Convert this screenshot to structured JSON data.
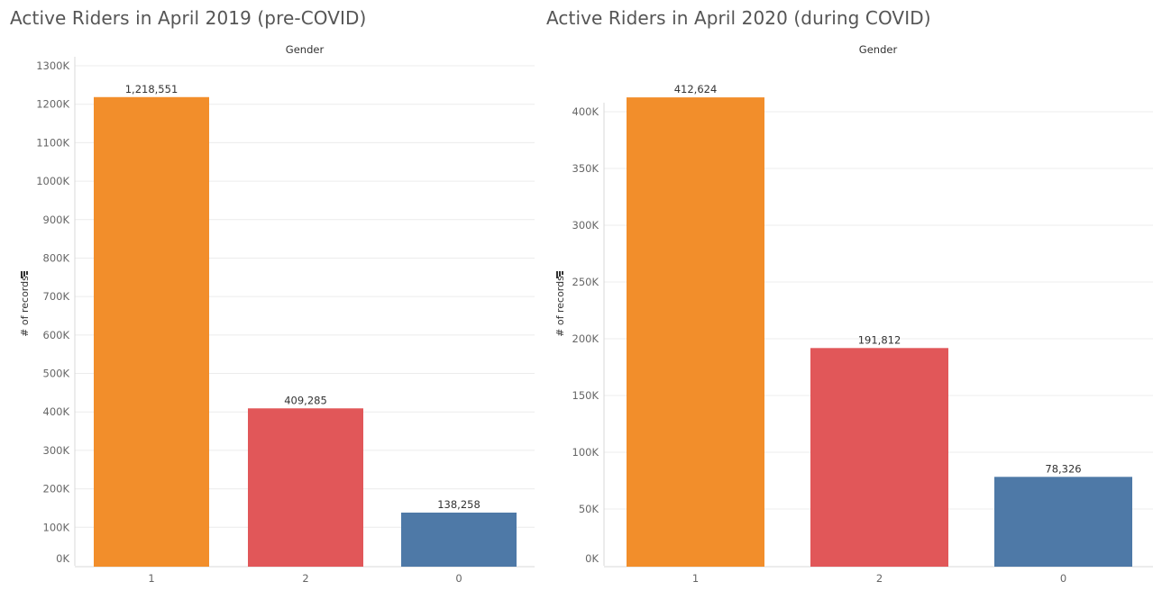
{
  "colors": {
    "cat1": "#f28e2b",
    "cat2": "#e15759",
    "cat0": "#4e79a7"
  },
  "icons": {
    "sort": "sort-descending-icon"
  },
  "chart_data": [
    {
      "type": "bar",
      "title": "Active Riders in April 2019 (pre-COVID)",
      "header": "Gender",
      "ylabel": "# of records",
      "categories": [
        "1",
        "2",
        "0"
      ],
      "values": [
        1218551,
        409285,
        138258
      ],
      "value_labels": [
        "1,218,551",
        "409,285",
        "138,258"
      ],
      "ylim": [
        0,
        1300000
      ],
      "yticks": [
        0,
        100000,
        200000,
        300000,
        400000,
        500000,
        600000,
        700000,
        800000,
        900000,
        1000000,
        1100000,
        1200000,
        1300000
      ],
      "ytick_labels": [
        "0K",
        "100K",
        "200K",
        "300K",
        "400K",
        "500K",
        "600K",
        "700K",
        "800K",
        "900K",
        "1000K",
        "1100K",
        "1200K",
        "1300K"
      ],
      "grid": true
    },
    {
      "type": "bar",
      "title": "Active Riders in April 2020 (during COVID)",
      "header": "Gender",
      "ylabel": "# of records",
      "categories": [
        "1",
        "2",
        "0"
      ],
      "values": [
        412624,
        191812,
        78326
      ],
      "value_labels": [
        "412,624",
        "191,812",
        "78,326"
      ],
      "ylim": [
        0,
        400000
      ],
      "yticks": [
        0,
        50000,
        100000,
        150000,
        200000,
        250000,
        300000,
        350000,
        400000
      ],
      "ytick_labels": [
        "0K",
        "50K",
        "100K",
        "150K",
        "200K",
        "250K",
        "300K",
        "350K",
        "400K"
      ],
      "grid": true
    }
  ]
}
